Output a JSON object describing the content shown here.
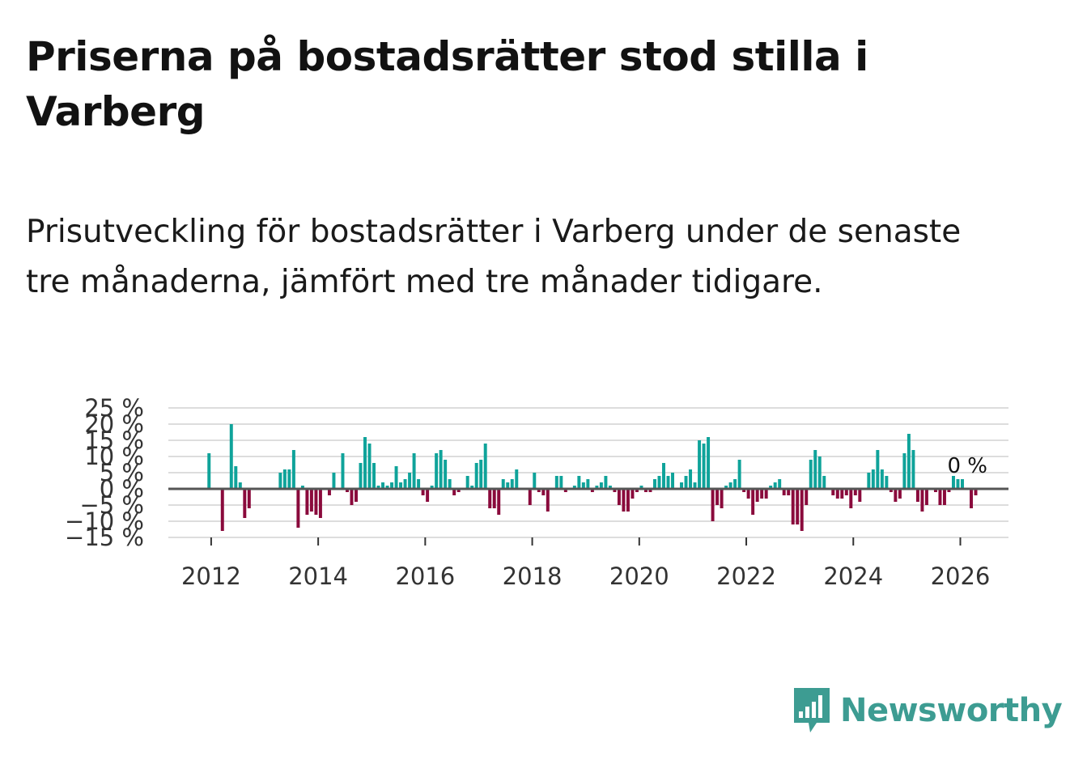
{
  "title": "Priserna på bostadsrätter stod stilla i Varberg",
  "subtitle": "Prisutveckling för bostadsrätter i Varberg under de senaste tre månaderna, jämfört med tre månader tidigare.",
  "brand": {
    "name": "Newsworthy",
    "icon": "newsworthy-logo-icon"
  },
  "colors": {
    "positive": "#0fa39a",
    "negative": "#8a0a3c",
    "grid": "#dddddd",
    "zero_line": "#555555",
    "brand": "#3d9c92"
  },
  "chart_data": {
    "type": "bar",
    "title": "",
    "xlabel": "",
    "ylabel": "",
    "ylim": [
      -15,
      25
    ],
    "xlim": [
      2011.2,
      2026.9
    ],
    "y_ticks": [
      {
        "value": 25,
        "label": "25 %"
      },
      {
        "value": 20,
        "label": "20 %"
      },
      {
        "value": 15,
        "label": "15 %"
      },
      {
        "value": 10,
        "label": "10 %"
      },
      {
        "value": 5,
        "label": "5 %"
      },
      {
        "value": 0,
        "label": "0 %"
      },
      {
        "value": -5,
        "label": "−5 %"
      },
      {
        "value": -10,
        "label": "−10 %"
      },
      {
        "value": -15,
        "label": "−15 %"
      }
    ],
    "x_ticks": [
      {
        "value": 2012,
        "label": "2012"
      },
      {
        "value": 2014,
        "label": "2014"
      },
      {
        "value": 2016,
        "label": "2016"
      },
      {
        "value": 2018,
        "label": "2018"
      },
      {
        "value": 2020,
        "label": "2020"
      },
      {
        "value": 2022,
        "label": "2022"
      },
      {
        "value": 2024,
        "label": "2024"
      },
      {
        "value": 2026,
        "label": "2026"
      }
    ],
    "annotation": {
      "label": "0 %",
      "x": 2026.0,
      "y": 0
    },
    "start": 2011.96,
    "step": 0.0833,
    "values": [
      11,
      0,
      0,
      -13,
      0,
      20,
      7,
      2,
      -9,
      -6,
      0,
      0,
      0,
      0,
      0,
      0,
      5,
      6,
      6,
      12,
      -12,
      1,
      -8,
      -7,
      -8,
      -9,
      0,
      -2,
      5,
      0,
      11,
      -1,
      -5,
      -4,
      8,
      16,
      14,
      8,
      1,
      2,
      1,
      2,
      7,
      2,
      3,
      5,
      11,
      3,
      -2,
      -4,
      1,
      11,
      12,
      9,
      3,
      -2,
      -1,
      0,
      4,
      1,
      8,
      9,
      14,
      -6,
      -6,
      -8,
      3,
      2,
      3,
      6,
      0,
      0,
      -5,
      5,
      -1,
      -2,
      -7,
      0,
      4,
      4,
      -1,
      0,
      1,
      4,
      2,
      3,
      -1,
      1,
      2,
      4,
      1,
      -1,
      -5,
      -7,
      -7,
      -3,
      -1,
      1,
      -1,
      -1,
      3,
      4,
      8,
      4,
      5,
      0,
      2,
      4,
      6,
      2,
      15,
      14,
      16,
      -10,
      -5,
      -6,
      1,
      2,
      3,
      9,
      -1,
      -3,
      -8,
      -4,
      -3,
      -3,
      1,
      2,
      3,
      -2,
      -2,
      -11,
      -11,
      -13,
      -5,
      9,
      12,
      10,
      4,
      0,
      -2,
      -3,
      -3,
      -2,
      -6,
      -2,
      -4,
      0,
      5,
      6,
      12,
      6,
      4,
      -1,
      -4,
      -3,
      11,
      17,
      12,
      -4,
      -7,
      -5,
      0,
      -1,
      -5,
      -5,
      -1,
      4,
      3,
      3,
      0,
      -6,
      -2
    ]
  }
}
